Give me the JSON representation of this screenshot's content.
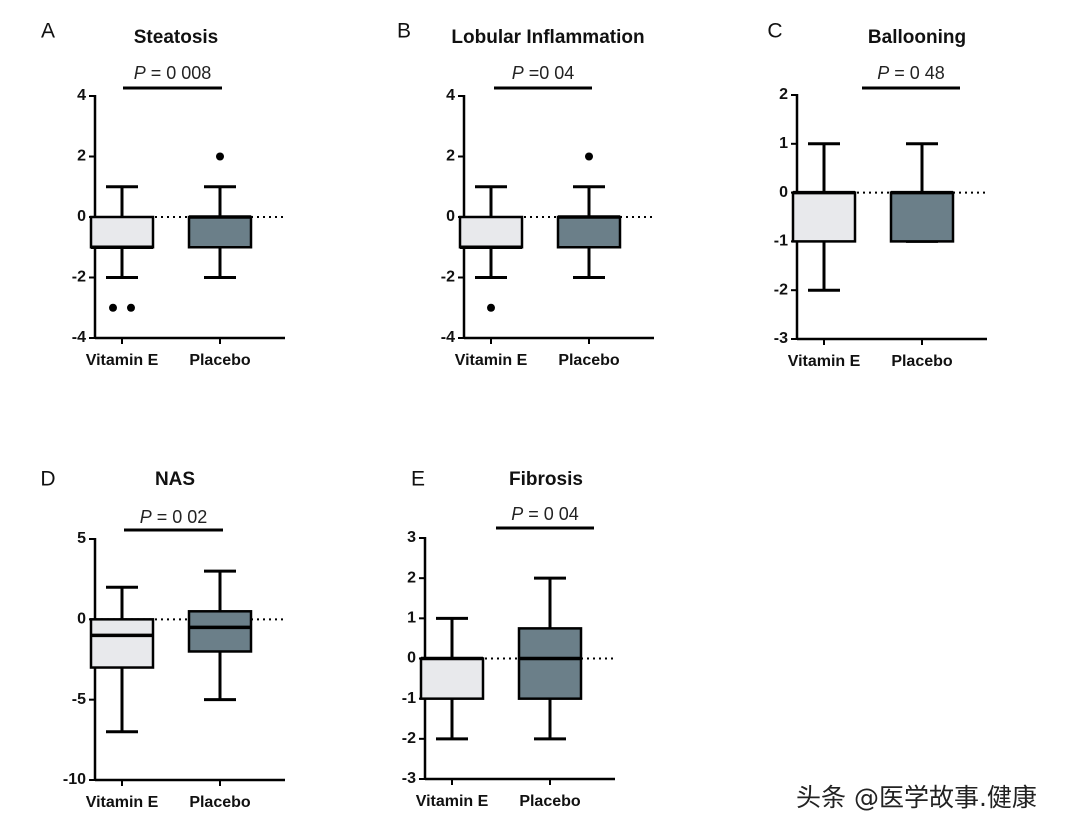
{
  "watermark": "头条 @医学故事.健康",
  "colors": {
    "vitamin_e": "#e8e9ec",
    "placebo": "#6b7f89",
    "stroke": "#000000"
  },
  "chart_data": [
    {
      "letter": "A",
      "title": "Steatosis",
      "p_label": "P",
      "p_value": "= 0 008",
      "type": "boxplot",
      "ylim": [
        -4,
        4
      ],
      "ticks": [
        4,
        2,
        0,
        -2,
        -4
      ],
      "tick_labels": [
        "4",
        "2",
        "0",
        "-2",
        "-4"
      ],
      "zero_line": "dotted",
      "groups": [
        {
          "name": "Vitamin E",
          "color": "vitamin_e",
          "whisker_low": -2,
          "q1": -1,
          "median": -1,
          "q3": 0,
          "whisker_high": 1,
          "outliers": [
            -3,
            -3
          ]
        },
        {
          "name": "Placebo",
          "color": "placebo",
          "whisker_low": -2,
          "q1": -1,
          "median": 0,
          "q3": 0,
          "whisker_high": 1,
          "outliers": [
            2
          ]
        }
      ]
    },
    {
      "letter": "B",
      "title": "Lobular Inflammation",
      "p_label": "P",
      "p_value": "=0 04",
      "type": "boxplot",
      "ylim": [
        -4,
        4
      ],
      "ticks": [
        4,
        2,
        0,
        -2,
        -4
      ],
      "tick_labels": [
        "4",
        "2",
        "0",
        "-2",
        "-4"
      ],
      "zero_line": "dotted",
      "groups": [
        {
          "name": "Vitamin E",
          "color": "vitamin_e",
          "whisker_low": -2,
          "q1": -1,
          "median": -1,
          "q3": 0,
          "whisker_high": 1,
          "outliers": [
            -3
          ]
        },
        {
          "name": "Placebo",
          "color": "placebo",
          "whisker_low": -2,
          "q1": -1,
          "median": 0,
          "q3": 0,
          "whisker_high": 1,
          "outliers": [
            2
          ]
        }
      ]
    },
    {
      "letter": "C",
      "title": "Ballooning",
      "p_label": "P",
      "p_value": "= 0 48",
      "type": "boxplot",
      "ylim": [
        -3,
        2
      ],
      "ticks": [
        2,
        1,
        0,
        -1,
        -2,
        -3
      ],
      "tick_labels": [
        "2",
        "1",
        "0",
        "-1",
        "-2",
        "-3"
      ],
      "zero_line": "dotted",
      "groups": [
        {
          "name": "Vitamin E",
          "color": "vitamin_e",
          "whisker_low": -2,
          "q1": -1,
          "median": 0,
          "q3": 0,
          "whisker_high": 1,
          "outliers": []
        },
        {
          "name": "Placebo",
          "color": "placebo",
          "whisker_low": -1,
          "q1": -1,
          "median": 0,
          "q3": 0,
          "whisker_high": 1,
          "outliers": []
        }
      ]
    },
    {
      "letter": "D",
      "title": "NAS",
      "p_label": "P",
      "p_value": "= 0 02",
      "type": "boxplot",
      "ylim": [
        -10,
        5
      ],
      "ticks": [
        5,
        0,
        -5,
        -10
      ],
      "tick_labels": [
        "5",
        "0",
        "-5",
        "-10"
      ],
      "zero_line": "dotted",
      "groups": [
        {
          "name": "Vitamin E",
          "color": "vitamin_e",
          "whisker_low": -7,
          "q1": -3,
          "median": -1,
          "q3": 0,
          "whisker_high": 2,
          "outliers": []
        },
        {
          "name": "Placebo",
          "color": "placebo",
          "whisker_low": -5,
          "q1": -2,
          "median": -0.5,
          "q3": 0.5,
          "whisker_high": 3,
          "outliers": []
        }
      ]
    },
    {
      "letter": "E",
      "title": "Fibrosis",
      "p_label": "P",
      "p_value": "= 0 04",
      "type": "boxplot",
      "ylim": [
        -3,
        3
      ],
      "ticks": [
        3,
        2,
        1,
        0,
        -1,
        -2,
        -3
      ],
      "tick_labels": [
        "3",
        "2",
        "1",
        "0",
        "-1",
        "-2",
        "-3"
      ],
      "zero_line": "dotted",
      "groups": [
        {
          "name": "Vitamin E",
          "color": "vitamin_e",
          "whisker_low": -2,
          "q1": -1,
          "median": 0,
          "q3": 0,
          "whisker_high": 1,
          "outliers": []
        },
        {
          "name": "Placebo",
          "color": "placebo",
          "whisker_low": -2,
          "q1": -1,
          "median": 0,
          "q3": 0.75,
          "whisker_high": 2,
          "outliers": []
        }
      ]
    }
  ]
}
